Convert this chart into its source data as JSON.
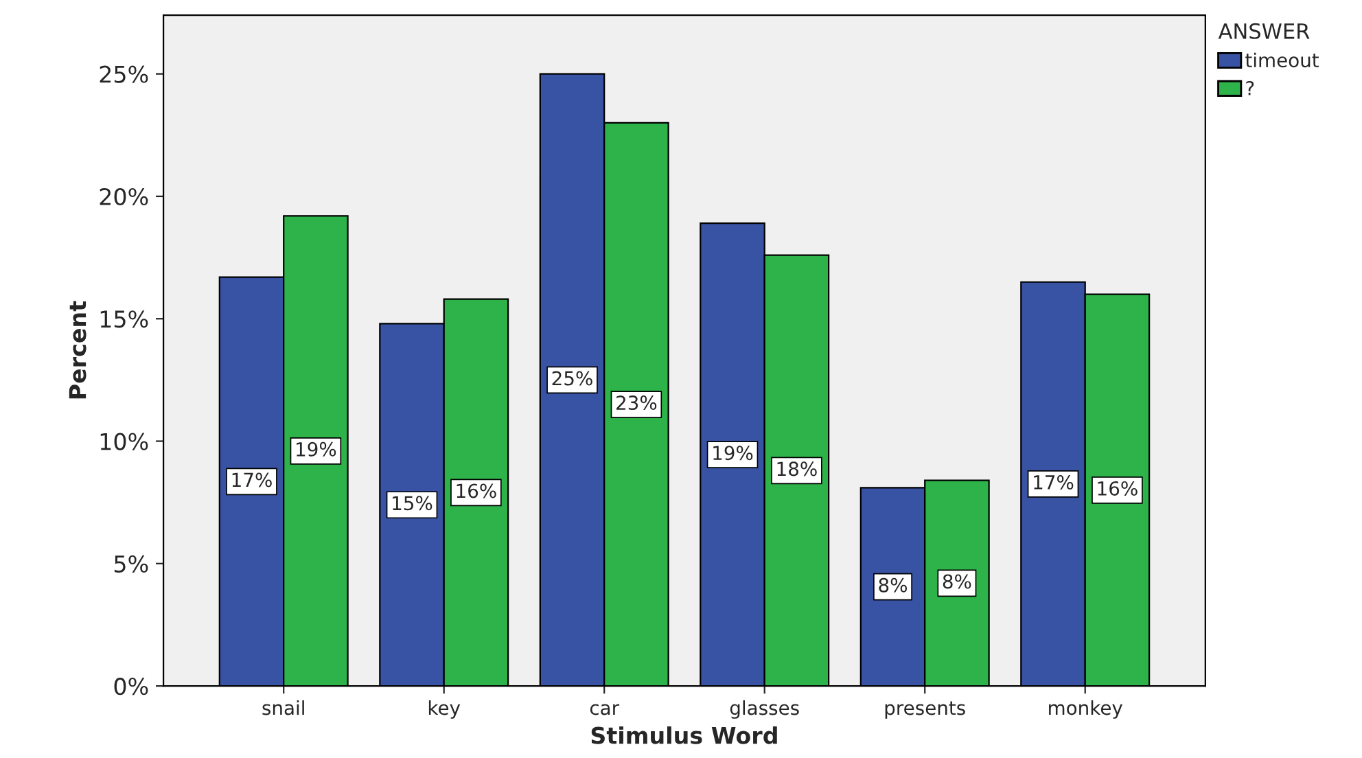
{
  "chart_data": {
    "type": "bar",
    "xlabel": "Stimulus Word",
    "ylabel": "Percent",
    "legend_title": "ANSWER",
    "legend": "top right",
    "categories": [
      "snail",
      "key",
      "car",
      "glasses",
      "presents",
      "monkey"
    ],
    "series": [
      {
        "name": "timeout",
        "color": "#3953a4",
        "values": [
          16.7,
          14.8,
          25.0,
          18.9,
          8.1,
          16.5
        ],
        "value_labels": [
          "17%",
          "15%",
          "25%",
          "19%",
          "8%",
          "17%"
        ]
      },
      {
        "name": "?",
        "color": "#2db34a",
        "values": [
          19.2,
          15.8,
          23.0,
          17.6,
          8.4,
          16.0
        ],
        "value_labels": [
          "19%",
          "16%",
          "23%",
          "18%",
          "8%",
          "16%"
        ]
      }
    ],
    "ylim": [
      0,
      27.4
    ],
    "yticks": [
      {
        "value": 0,
        "label": "0%"
      },
      {
        "value": 5,
        "label": "5%"
      },
      {
        "value": 10,
        "label": "10%"
      },
      {
        "value": 15,
        "label": "15%"
      },
      {
        "value": 20,
        "label": "20%"
      },
      {
        "value": 25,
        "label": "25%"
      }
    ],
    "grid": false
  }
}
